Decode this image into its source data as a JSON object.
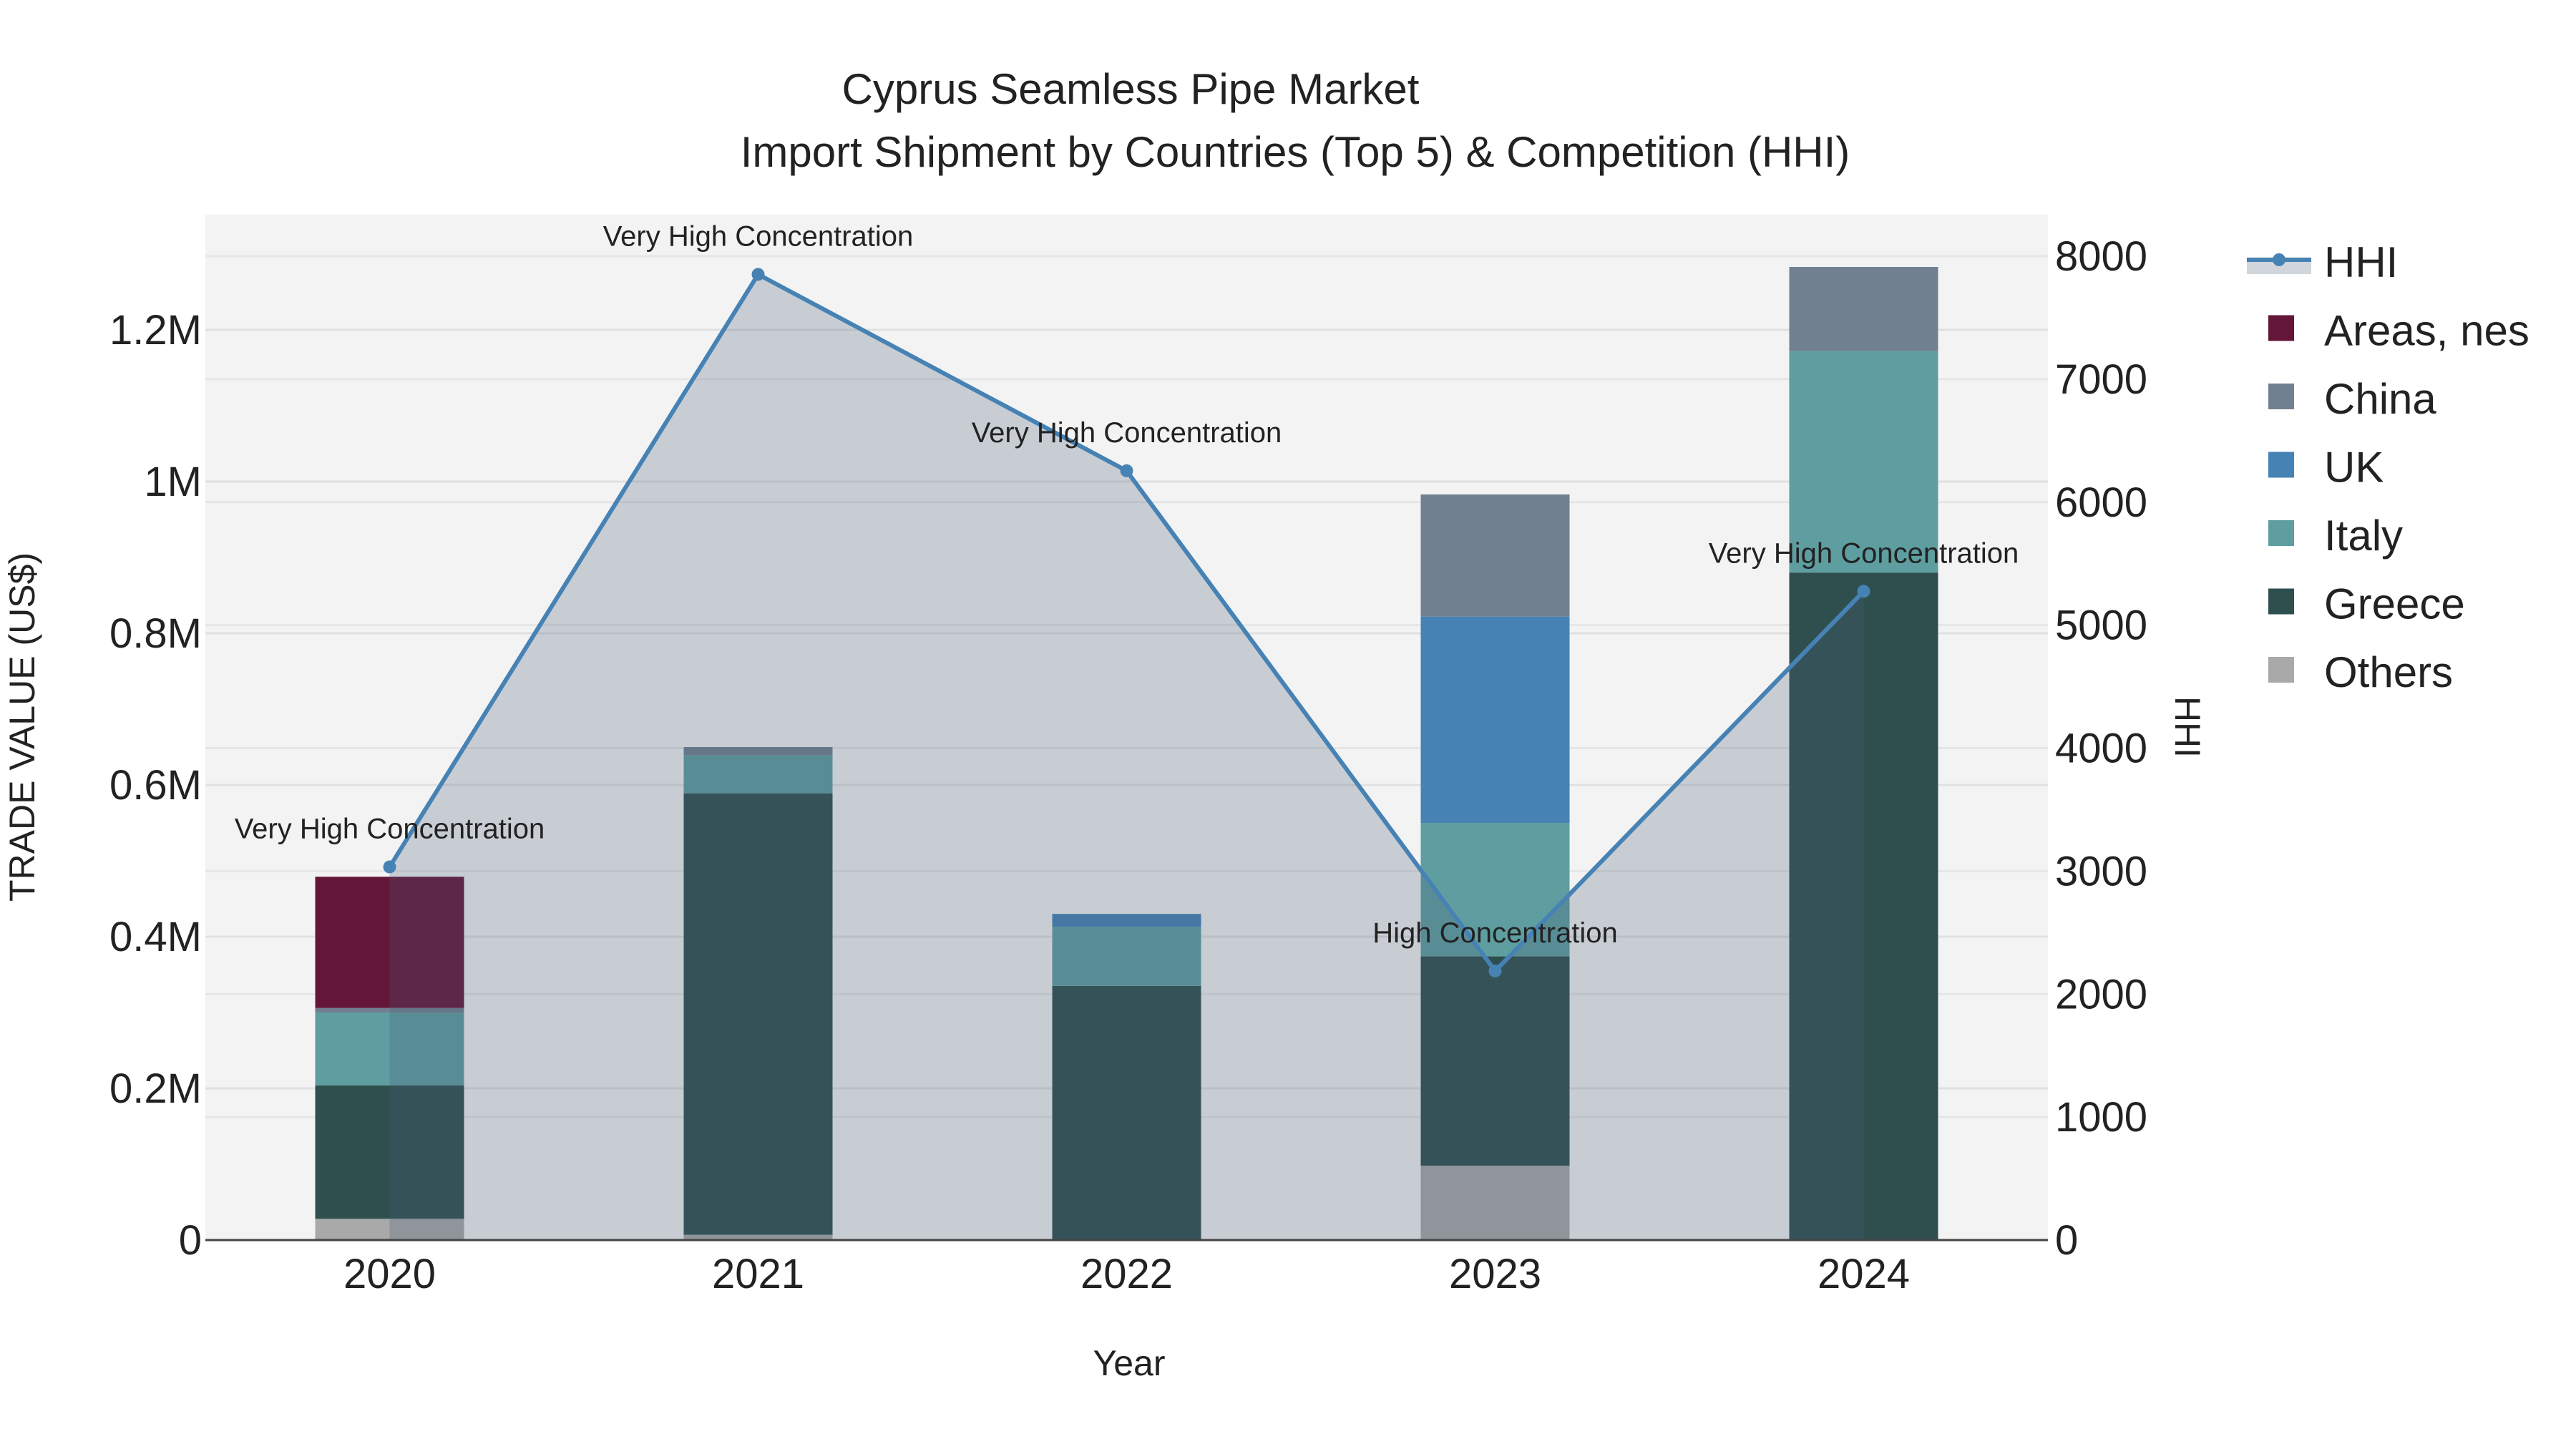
{
  "chart_data": {
    "type": "bar",
    "title": "Cyprus Seamless Pipe Market",
    "subtitle": "Import Shipment by Countries (Top 5) & Competition (HHI)",
    "xlabel": "Year",
    "ylabel": "TRADE VALUE (US$)",
    "y2label": "HHI",
    "categories": [
      "2020",
      "2021",
      "2022",
      "2023",
      "2024"
    ],
    "ylim": [
      0,
      1350000
    ],
    "y2lim": [
      0,
      8300
    ],
    "yticks": [
      0,
      200000,
      400000,
      600000,
      800000,
      1000000,
      1200000
    ],
    "ytick_labels": [
      "0",
      "0.2M",
      "0.4M",
      "0.6M",
      "0.8M",
      "1M",
      "1.2M"
    ],
    "y2ticks": [
      0,
      1000,
      2000,
      3000,
      4000,
      5000,
      6000,
      7000,
      8000
    ],
    "y2tick_labels": [
      "0",
      "1000",
      "2000",
      "3000",
      "4000",
      "5000",
      "6000",
      "7000",
      "8000"
    ],
    "grid": true,
    "legend_position": "right",
    "series": [
      {
        "name": "Others",
        "color": "#a9a9a9",
        "values": [
          28000,
          7000,
          0,
          98000,
          0
        ]
      },
      {
        "name": "Greece",
        "color": "#2f4f4f",
        "values": [
          176000,
          582000,
          335000,
          276000,
          880000
        ]
      },
      {
        "name": "Italy",
        "color": "#5f9ea0",
        "values": [
          96000,
          50000,
          78000,
          176000,
          292000
        ]
      },
      {
        "name": "UK",
        "color": "#4682b4",
        "values": [
          0,
          0,
          17000,
          272000,
          0
        ]
      },
      {
        "name": "China",
        "color": "#708090",
        "values": [
          6000,
          11000,
          0,
          161000,
          111000
        ]
      },
      {
        "name": "Areas, nes",
        "color": "#641638",
        "values": [
          173000,
          0,
          0,
          0,
          0
        ]
      }
    ],
    "hhi": {
      "name": "HHI",
      "color": "#4682b4",
      "values": [
        3034,
        7852,
        6255,
        2188,
        5275
      ],
      "annotations": [
        "Very High Concentration",
        "Very High Concentration",
        "Very High Concentration",
        "High Concentration",
        "Very High Concentration"
      ]
    },
    "legend_order": [
      "HHI",
      "Areas, nes",
      "China",
      "UK",
      "Italy",
      "Greece",
      "Others"
    ]
  }
}
